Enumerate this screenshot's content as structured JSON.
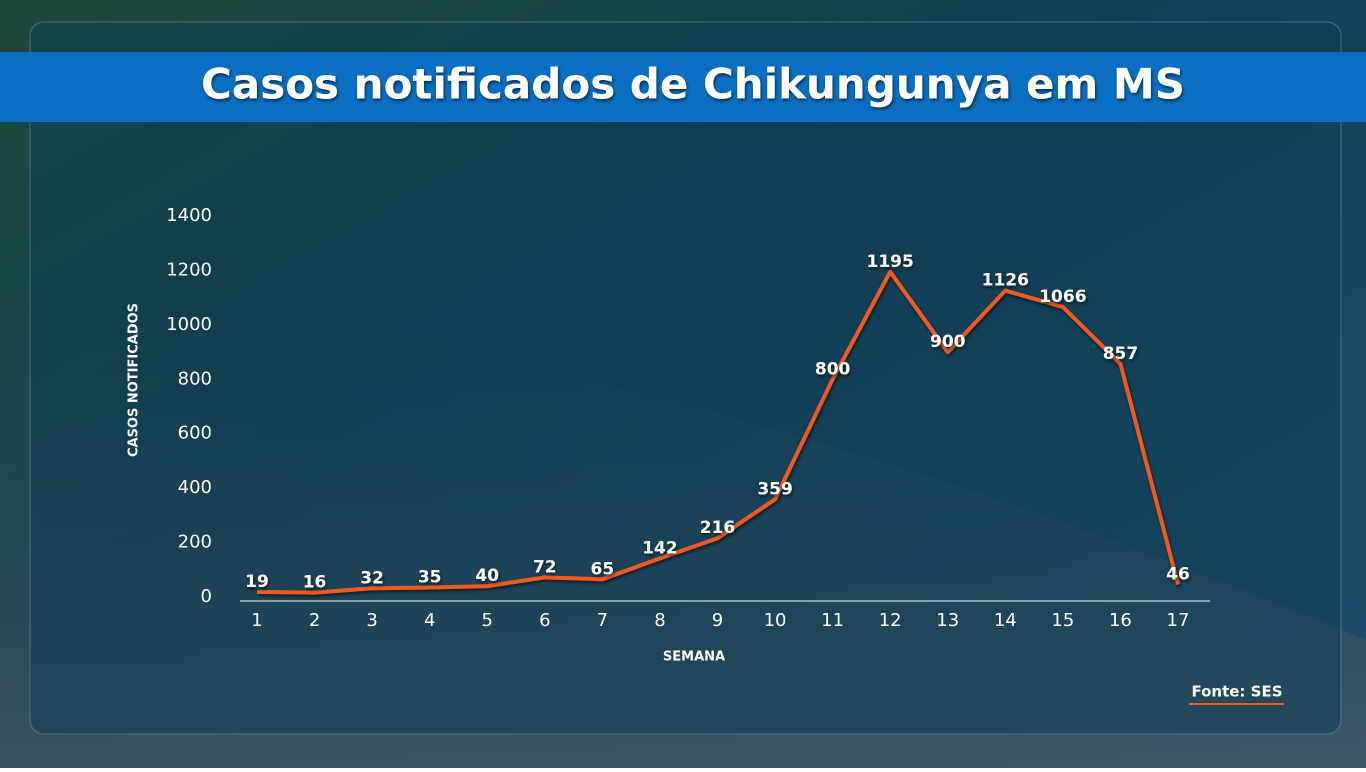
{
  "chart_data": {
    "type": "line",
    "title": "Casos notificados de Chikungunya em MS",
    "x_label": "SEMANA",
    "y_label": "CASOS NOTIFICADOS",
    "source": "Fonte: SES",
    "categories": [
      "1",
      "2",
      "3",
      "4",
      "5",
      "6",
      "7",
      "8",
      "9",
      "10",
      "11",
      "12",
      "13",
      "14",
      "15",
      "16",
      "17"
    ],
    "series": [
      {
        "name": "Casos notificados",
        "color": "#f05a22",
        "values": [
          19,
          16,
          32,
          35,
          40,
          72,
          65,
          142,
          216,
          359,
          800,
          1195,
          900,
          1126,
          1066,
          857,
          46
        ]
      }
    ],
    "ylim": [
      0,
      1400
    ],
    "yticks": [
      0,
      200,
      400,
      600,
      800,
      1000,
      1200,
      1400
    ],
    "grid": false
  }
}
